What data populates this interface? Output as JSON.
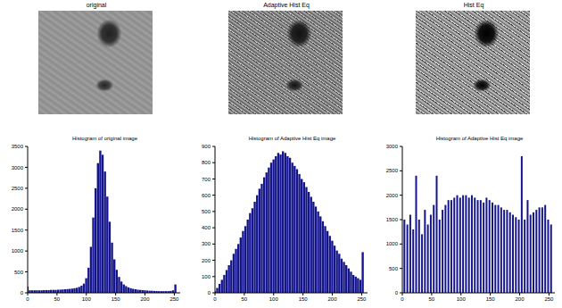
{
  "images": [
    {
      "title": "original"
    },
    {
      "title": "Adaptive Hist Eq"
    },
    {
      "title": "Hist Eq"
    }
  ],
  "chart_data": [
    {
      "type": "bar",
      "title": "Histogram of original image",
      "x": [
        0,
        4,
        8,
        12,
        16,
        20,
        24,
        28,
        32,
        36,
        40,
        44,
        48,
        52,
        56,
        60,
        64,
        68,
        72,
        76,
        80,
        84,
        88,
        92,
        96,
        100,
        104,
        108,
        112,
        116,
        120,
        124,
        128,
        132,
        136,
        140,
        144,
        148,
        152,
        156,
        160,
        164,
        168,
        172,
        176,
        180,
        184,
        188,
        192,
        196,
        200,
        204,
        208,
        212,
        216,
        220,
        224,
        228,
        232,
        236,
        240,
        244,
        248,
        252
      ],
      "values": [
        150,
        60,
        60,
        60,
        60,
        60,
        60,
        65,
        65,
        65,
        70,
        70,
        70,
        75,
        75,
        80,
        85,
        90,
        95,
        100,
        110,
        120,
        140,
        170,
        220,
        350,
        600,
        1100,
        1800,
        2500,
        3100,
        3400,
        3300,
        2900,
        2300,
        1700,
        1200,
        800,
        550,
        380,
        270,
        200,
        160,
        130,
        110,
        95,
        85,
        75,
        70,
        65,
        60,
        55,
        50,
        50,
        45,
        45,
        40,
        40,
        40,
        40,
        40,
        45,
        60,
        200
      ],
      "color": "#14148c",
      "xlim": [
        0,
        260
      ],
      "xticks": [
        0,
        50,
        100,
        150,
        200,
        250
      ],
      "ylim": [
        0,
        3500
      ],
      "yticks": [
        0,
        500,
        1000,
        1500,
        2000,
        2500,
        3000,
        3500
      ],
      "grid": false
    },
    {
      "type": "bar",
      "title": "Histogram of Adaptive Hist Eq image",
      "x": [
        0,
        4,
        8,
        12,
        16,
        20,
        24,
        28,
        32,
        36,
        40,
        44,
        48,
        52,
        56,
        60,
        64,
        68,
        72,
        76,
        80,
        84,
        88,
        92,
        96,
        100,
        104,
        108,
        112,
        116,
        120,
        124,
        128,
        132,
        136,
        140,
        144,
        148,
        152,
        156,
        160,
        164,
        168,
        172,
        176,
        180,
        184,
        188,
        192,
        196,
        200,
        204,
        208,
        212,
        216,
        220,
        224,
        228,
        232,
        236,
        240,
        244,
        248,
        252
      ],
      "values": [
        10,
        30,
        55,
        80,
        110,
        140,
        170,
        200,
        240,
        270,
        300,
        340,
        380,
        410,
        450,
        490,
        520,
        560,
        600,
        640,
        670,
        710,
        740,
        770,
        800,
        820,
        840,
        860,
        850,
        870,
        860,
        840,
        830,
        800,
        780,
        760,
        730,
        700,
        680,
        650,
        620,
        590,
        560,
        530,
        500,
        470,
        440,
        410,
        380,
        350,
        320,
        290,
        260,
        240,
        210,
        190,
        170,
        150,
        130,
        110,
        100,
        90,
        80,
        250
      ],
      "color": "#14148c",
      "xlim": [
        0,
        260
      ],
      "xticks": [
        0,
        50,
        100,
        150,
        200,
        250
      ],
      "ylim": [
        0,
        900
      ],
      "yticks": [
        0,
        100,
        200,
        300,
        400,
        500,
        600,
        700,
        800,
        900
      ],
      "grid": false
    },
    {
      "type": "bar",
      "title": "Histogram of Adaptive Hist Eq image",
      "x": [
        3,
        8,
        13,
        18,
        23,
        28,
        33,
        38,
        43,
        48,
        53,
        58,
        63,
        68,
        73,
        78,
        83,
        88,
        93,
        98,
        103,
        108,
        113,
        118,
        123,
        128,
        133,
        138,
        143,
        148,
        153,
        158,
        163,
        168,
        173,
        178,
        183,
        188,
        193,
        198,
        203,
        208,
        213,
        218,
        223,
        228,
        233,
        238,
        243,
        248,
        253
      ],
      "values": [
        1500,
        1400,
        1600,
        1300,
        2400,
        1500,
        1200,
        1700,
        1400,
        1600,
        1800,
        2400,
        1500,
        1700,
        1800,
        1900,
        1900,
        1950,
        2000,
        1950,
        2000,
        2000,
        1950,
        2000,
        1950,
        1900,
        1900,
        1850,
        1950,
        1900,
        1850,
        1800,
        1800,
        1750,
        1700,
        1700,
        1650,
        1600,
        1550,
        1500,
        2800,
        1500,
        1900,
        1600,
        1650,
        1700,
        1750,
        1750,
        1800,
        1500,
        1400
      ],
      "color": "#14148c",
      "xlim": [
        0,
        260
      ],
      "xticks": [
        0,
        50,
        100,
        150,
        200,
        250
      ],
      "ylim": [
        0,
        3000
      ],
      "yticks": [
        0,
        500,
        1000,
        1500,
        2000,
        2500,
        3000
      ],
      "grid": false
    }
  ]
}
